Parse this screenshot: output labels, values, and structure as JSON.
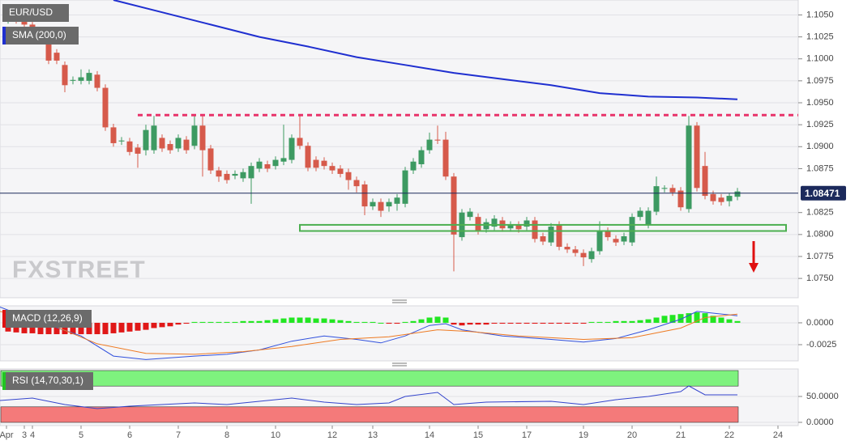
{
  "chart_data": [
    {
      "type": "candlestick",
      "title": "EUR/USD",
      "watermark": "FXSTREET",
      "up_color": "#3d9a62",
      "down_color": "#d65a4b",
      "open": [
        1.1044,
        1.1048,
        1.1044,
        1.1039,
        1.103,
        1.1021,
        1.1007,
        1.0993,
        1.0975,
        1.0975,
        1.0975,
        1.0982,
        1.0967,
        1.0922,
        1.0906,
        1.0906,
        1.0899,
        1.0896,
        1.0896,
        1.091,
        1.0903,
        1.0898,
        1.0908,
        1.0901,
        1.0924,
        1.0898,
        1.0873,
        1.0869,
        1.0867,
        1.0864,
        1.0864,
        1.0875,
        1.088,
        1.0878,
        1.0883,
        1.0885,
        1.091,
        1.0901,
        1.0885,
        1.0884,
        1.0878,
        1.0875,
        1.0871,
        1.0862,
        1.0857,
        1.0832,
        1.0837,
        1.0832,
        1.0835,
        1.0835,
        1.0873,
        1.088,
        1.0896,
        1.0908,
        1.0908,
        1.0866,
        1.0797,
        1.082,
        1.082,
        1.0806,
        1.0809,
        1.0816,
        1.0807,
        1.0811,
        1.0809,
        1.0816,
        1.0798,
        1.0791,
        1.0811,
        1.0786,
        1.0783,
        1.0779,
        1.0772,
        1.0781,
        1.0804,
        1.0795,
        1.0792,
        1.0791,
        1.082,
        1.0811,
        1.0826,
        1.0852,
        1.0853,
        1.085,
        1.0829,
        1.0924,
        1.0878,
        1.0846,
        1.0842,
        1.0838,
        1.0843
      ],
      "high": [
        1.105,
        1.1052,
        1.1047,
        1.1042,
        1.1034,
        1.1025,
        1.1011,
        1.0997,
        1.098,
        1.0988,
        1.0988,
        1.0986,
        1.0971,
        1.0926,
        1.0911,
        1.091,
        1.0903,
        1.0925,
        1.0935,
        1.0914,
        1.0907,
        1.0914,
        1.0912,
        1.0935,
        1.0935,
        1.0902,
        1.0877,
        1.0873,
        1.0873,
        1.0875,
        1.0882,
        1.0887,
        1.0884,
        1.0889,
        1.0925,
        1.0914,
        1.0935,
        1.0905,
        1.0889,
        1.0888,
        1.0882,
        1.0879,
        1.0875,
        1.0866,
        1.0861,
        1.0841,
        1.0841,
        1.0841,
        1.0846,
        1.0877,
        1.0887,
        1.09,
        1.0916,
        1.0924,
        1.0917,
        1.087,
        1.0829,
        1.083,
        1.0824,
        1.0818,
        1.0822,
        1.082,
        1.0815,
        1.0815,
        1.082,
        1.082,
        1.0802,
        1.0813,
        1.0815,
        1.079,
        1.0787,
        1.0783,
        1.0785,
        1.0815,
        1.0808,
        1.0799,
        1.0802,
        1.0824,
        1.0831,
        1.0831,
        1.0866,
        1.0856,
        1.0857,
        1.0854,
        1.0935,
        1.0928,
        1.0894,
        1.085,
        1.0846,
        1.0847,
        1.0853
      ],
      "low": [
        1.104,
        1.104,
        1.1035,
        1.103,
        1.1017,
        1.0994,
        1.0994,
        1.0962,
        1.0971,
        1.0971,
        1.0971,
        1.0963,
        1.0918,
        1.09,
        1.0902,
        1.089,
        1.0876,
        1.089,
        1.0892,
        1.0894,
        1.0892,
        1.0894,
        1.0892,
        1.0897,
        1.0866,
        1.0869,
        1.086,
        1.0858,
        1.0863,
        1.086,
        1.0835,
        1.0871,
        1.0871,
        1.0874,
        1.0879,
        1.0881,
        1.0897,
        1.0872,
        1.0872,
        1.0874,
        1.0869,
        1.0865,
        1.0851,
        1.0848,
        1.0822,
        1.0828,
        1.082,
        1.0826,
        1.0827,
        1.0831,
        1.0869,
        1.0876,
        1.0892,
        1.0903,
        1.0862,
        1.0758,
        1.0793,
        1.0816,
        1.08,
        1.0802,
        1.0805,
        1.0803,
        1.0803,
        1.0802,
        1.0805,
        1.0791,
        1.0788,
        1.0787,
        1.0782,
        1.0779,
        1.0775,
        1.0764,
        1.0768,
        1.0777,
        1.0793,
        1.0787,
        1.0788,
        1.0787,
        1.0816,
        1.0807,
        1.0822,
        1.0848,
        1.0844,
        1.0827,
        1.0825,
        1.0849,
        1.084,
        1.0834,
        1.0833,
        1.0832,
        1.0839
      ],
      "close": [
        1.1048,
        1.1044,
        1.1039,
        1.1034,
        1.1021,
        1.0998,
        1.0998,
        1.097,
        1.0976,
        1.0979,
        1.0984,
        1.0967,
        1.0922,
        1.0904,
        1.0907,
        1.0894,
        1.0892,
        1.0919,
        1.0924,
        1.0898,
        1.0896,
        1.091,
        1.0896,
        1.0924,
        1.0896,
        1.0873,
        1.0866,
        1.0862,
        1.0869,
        1.0871,
        1.0878,
        1.0883,
        1.0875,
        1.0885,
        1.0887,
        1.091,
        1.0901,
        1.0876,
        1.0876,
        1.0878,
        1.0873,
        1.0869,
        1.0862,
        1.0855,
        1.0832,
        1.0837,
        1.0827,
        1.0837,
        1.0842,
        1.0873,
        1.0883,
        1.0896,
        1.0908,
        1.0907,
        1.0866,
        1.08,
        1.0825,
        1.0826,
        1.0804,
        1.0814,
        1.0818,
        1.0807,
        1.0811,
        1.0806,
        1.0816,
        1.0795,
        1.0792,
        1.0809,
        1.0786,
        1.0783,
        1.0779,
        1.0774,
        1.0781,
        1.0804,
        1.0797,
        1.0791,
        1.0798,
        1.082,
        1.0827,
        1.0827,
        1.0855,
        1.0853,
        1.0848,
        1.0831,
        1.0924,
        1.0853,
        1.0844,
        1.0838,
        1.0837,
        1.0844,
        1.0849
      ],
      "sma": {
        "name": "SMA (200,0)",
        "color": "#1f2fd0",
        "x": [
          13,
          19,
          25,
          31,
          37,
          43,
          49,
          55,
          61,
          67,
          73,
          79,
          85,
          90
        ],
        "values": [
          1.1067,
          1.1053,
          1.1039,
          1.1025,
          1.1014,
          1.1002,
          1.0993,
          1.0984,
          1.0977,
          1.097,
          1.0961,
          1.0957,
          1.0956,
          1.0954
        ]
      },
      "resistance": 1.0936,
      "resistance_color": "#e8336a",
      "support": [
        1.0804,
        1.0811
      ],
      "support_color": "#4caf50",
      "last_price": 1.08471,
      "last_price_color": "#1c2a5c",
      "xlim": [
        -1,
        97.5
      ],
      "ylim": [
        1.0728,
        1.1067
      ],
      "grid": true,
      "yticks": [
        {
          "value": 1.105,
          "label": "1.1050"
        },
        1.1025,
        {
          "value": 1.1,
          "label": "1.1000"
        },
        1.0975,
        {
          "value": 1.095,
          "label": "1.0950"
        },
        1.0925,
        {
          "value": 1.09,
          "label": "1.0900"
        },
        1.0875,
        1.0825,
        {
          "value": 1.08,
          "label": "1.0800"
        },
        1.0775,
        {
          "value": 1.075,
          "label": "1.0750"
        }
      ]
    },
    {
      "type": "macd",
      "title": "MACD (12,26,9)",
      "title_color": "#e01010",
      "pos_color": "#22e622",
      "neg_color": "#e01818",
      "histogram": [
        -0.001,
        -0.0011,
        -0.0012,
        -0.0012,
        -0.0013,
        -0.0013,
        -0.0013,
        -0.0013,
        -0.0013,
        -0.0013,
        -0.0013,
        -0.0013,
        -0.0013,
        -0.0012,
        -0.0011,
        -0.001,
        -0.0009,
        -0.0008,
        -0.0006,
        -0.0005,
        -0.0004,
        -0.0002,
        -0.0001,
        0.0001,
        0.0001,
        0.0001,
        0.0001,
        0.0001,
        0.0001,
        0.0002,
        0.0002,
        0.0002,
        0.0003,
        0.0004,
        0.0005,
        0.0006,
        0.0006,
        0.0006,
        0.0005,
        0.0005,
        0.0004,
        0.0003,
        0.0002,
        0.0001,
        0.0001,
        0.0001,
        0.0,
        -0.0001,
        -0.0001,
        0.0001,
        0.0002,
        0.0004,
        0.0006,
        0.0007,
        0.0006,
        -0.0002,
        -0.0003,
        -0.0002,
        -0.0002,
        -0.0002,
        -0.0001,
        -0.0001,
        -0.0001,
        -0.0001,
        -0.0001,
        -0.0001,
        -0.0001,
        -0.0001,
        -0.0001,
        -0.0001,
        -0.0001,
        -0.0001,
        0.0001,
        0.0001,
        0.0001,
        0.0002,
        0.0002,
        0.0002,
        0.0003,
        0.0004,
        0.0006,
        0.0008,
        0.0009,
        0.001,
        0.0011,
        0.0012,
        0.0011,
        0.0008,
        0.0006,
        0.0004,
        0.0002
      ],
      "series": [
        {
          "name": "MACD",
          "color": "#3050dd",
          "x": [
            -1,
            3,
            9,
            13,
            17,
            23,
            27,
            31,
            35,
            39,
            43,
            46,
            49,
            52,
            54,
            56,
            61,
            67,
            71,
            75,
            79,
            83,
            85,
            90
          ],
          "values": [
            0.0018,
            0.0004,
            -0.0015,
            -0.0038,
            -0.0042,
            -0.0038,
            -0.0036,
            -0.0031,
            -0.0021,
            -0.0015,
            -0.0019,
            -0.0023,
            -0.0015,
            -0.0003,
            -0.0001,
            -0.0008,
            -0.0015,
            -0.0019,
            -0.0022,
            -0.0018,
            -0.0008,
            0.0004,
            0.0013,
            0.0008
          ]
        },
        {
          "name": "Signal",
          "color": "#ee7a22",
          "x": [
            -1,
            5,
            11,
            17,
            23,
            29,
            35,
            41,
            47,
            53,
            57,
            63,
            71,
            77,
            83,
            86,
            90
          ],
          "values": [
            0.0013,
            -0.0001,
            -0.0024,
            -0.0035,
            -0.0036,
            -0.0033,
            -0.0027,
            -0.0019,
            -0.0016,
            -0.0008,
            -0.001,
            -0.0015,
            -0.0019,
            -0.0017,
            -0.0006,
            0.0006,
            0.001
          ]
        }
      ],
      "xlim": [
        -1,
        97.5
      ],
      "ylim": [
        -0.00435,
        0.00194
      ],
      "grid": true,
      "yticks": [
        {
          "value": 0,
          "label": "0.0000"
        },
        {
          "value": -0.0025,
          "label": "-0.0025"
        }
      ]
    },
    {
      "type": "rsi",
      "title": "RSI (14,70,30,1)",
      "title_color": "#22c422",
      "bands": [
        {
          "range": [
            70,
            100
          ],
          "color": "#7ef27e"
        },
        {
          "range": [
            0,
            30
          ],
          "color": "#f47a7a"
        }
      ],
      "series": [
        {
          "name": "RSI",
          "color": "#3344cc",
          "x": [
            -1,
            3,
            7,
            11,
            15,
            19,
            23,
            27,
            31,
            35,
            39,
            43,
            47,
            49,
            53,
            55,
            59,
            67,
            71,
            75,
            79,
            83,
            84,
            86,
            90
          ],
          "values": [
            42.2,
            46.9,
            34.4,
            26.6,
            31.3,
            34.4,
            37.5,
            34.4,
            40.6,
            46.9,
            39.1,
            34.4,
            37.5,
            50,
            57.8,
            34.4,
            39.1,
            40.6,
            34.4,
            43.8,
            50,
            59.4,
            70.3,
            53.1,
            53.1
          ]
        }
      ],
      "xlim": [
        -1,
        97.5
      ],
      "ylim": [
        -6.25,
        103.1
      ],
      "grid": true,
      "yticks": [
        {
          "value": 50,
          "label": "50.0000"
        },
        {
          "value": 0,
          "label": "0.0000"
        }
      ],
      "xticks": [
        {
          "value": -0.2,
          "label": "Apr"
        },
        {
          "value": 2,
          "label": "3"
        },
        {
          "value": 3,
          "label": "4"
        },
        {
          "value": 9,
          "label": "5"
        },
        {
          "value": 15,
          "label": "6"
        },
        {
          "value": 21,
          "label": "7"
        },
        {
          "value": 27,
          "label": "8"
        },
        {
          "value": 33,
          "label": "10"
        },
        {
          "value": 40,
          "label": "12"
        },
        {
          "value": 45,
          "label": "13"
        },
        {
          "value": 52,
          "label": "14"
        },
        {
          "value": 58,
          "label": "15"
        },
        {
          "value": 64,
          "label": "17"
        },
        {
          "value": 71,
          "label": "19"
        },
        {
          "value": 77,
          "label": "20"
        },
        {
          "value": 83,
          "label": "21"
        },
        {
          "value": 89,
          "label": "22"
        },
        {
          "value": 95,
          "label": "24"
        }
      ]
    }
  ]
}
